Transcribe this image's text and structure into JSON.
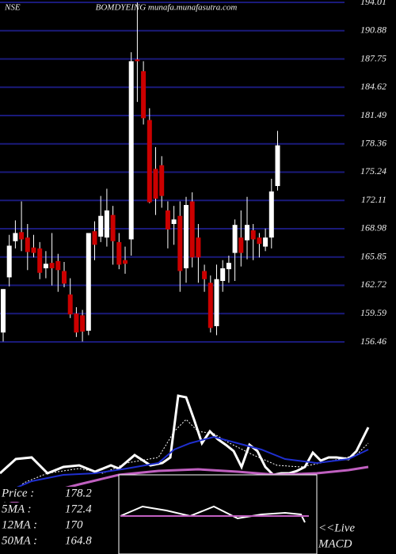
{
  "chart_data": {
    "type": "candlestick",
    "exchange": "NSE",
    "title": "BOMDYEING munafa.munafasutra.com",
    "open": [
      157.5,
      163.6,
      167.6,
      168.6,
      168.0,
      166.9,
      166.8,
      164.6,
      165.2,
      165.4,
      164.3,
      161.7,
      159.6,
      159.4,
      157.7,
      168.7,
      168.1,
      168.0,
      170.5,
      167.5,
      165.5,
      167.8,
      187.7,
      186.4,
      181.0,
      175.6,
      176.0,
      171.0,
      169.5,
      170.4,
      164.6,
      172.0,
      168.0,
      164.3,
      163.0,
      158.2,
      163.2,
      164.5,
      166.3,
      168.0,
      167.7,
      168.8,
      168.0,
      167.0,
      168.0,
      173.7
    ],
    "high": [
      162.3,
      168.3,
      169.9,
      172.0,
      169.5,
      168.3,
      167.5,
      166.5,
      168.5,
      166.2,
      165.3,
      163.5,
      160.3,
      160.0,
      168.5,
      169.8,
      172.6,
      173.4,
      171.5,
      168.5,
      167.0,
      188.5,
      194.0,
      187.5,
      182.3,
      178.0,
      177.0,
      172.0,
      171.5,
      172.0,
      172.5,
      173.0,
      169.5,
      165.0,
      163.8,
      165.0,
      165.5,
      166.0,
      170.0,
      171.0,
      172.5,
      169.5,
      168.5,
      169.0,
      174.5,
      179.8
    ],
    "low": [
      156.5,
      162.6,
      166.8,
      166.5,
      164.4,
      165.8,
      163.4,
      163.5,
      162.7,
      162.0,
      162.5,
      159.1,
      157.0,
      156.5,
      157.2,
      165.5,
      167.5,
      167.0,
      165.0,
      164.5,
      164.0,
      166.0,
      183.0,
      180.5,
      171.8,
      170.5,
      171.3,
      166.8,
      167.2,
      162.0,
      163.0,
      164.7,
      163.0,
      162.0,
      157.5,
      157.2,
      162.0,
      163.0,
      163.2,
      164.8,
      165.6,
      165.5,
      165.8,
      166.5,
      166.8,
      173.2
    ],
    "close": [
      162.3,
      167.1,
      168.5,
      167.8,
      166.4,
      166.3,
      164.1,
      165.1,
      164.6,
      164.4,
      162.9,
      159.5,
      157.5,
      157.6,
      168.5,
      167.2,
      170.4,
      171.0,
      167.6,
      165.0,
      165.1,
      187.5,
      187.5,
      181.2,
      171.9,
      172.3,
      172.6,
      168.9,
      170.0,
      164.3,
      171.6,
      165.8,
      165.8,
      163.4,
      158.0,
      163.4,
      164.6,
      165.2,
      169.4,
      166.3,
      169.4,
      167.8,
      167.3,
      168.0,
      173.1,
      178.2
    ],
    "up_color": "#ffffff",
    "down_color": "#cc0000",
    "wick_color": "#ffffff",
    "grid_color": "#1a1a7a",
    "ylim": [
      156.46,
      194.01
    ],
    "yticks": [
      194.01,
      190.88,
      187.75,
      184.62,
      181.49,
      178.36,
      175.24,
      172.11,
      168.98,
      165.85,
      162.72,
      159.59,
      156.46
    ],
    "grid": true,
    "stats": [
      {
        "label": "Price :",
        "value": 178.2
      },
      {
        "label": "5MA :",
        "value": 172.4
      },
      {
        "label": "12MA :",
        "value": 170
      },
      {
        "label": "50MA :",
        "value": 164.8
      }
    ],
    "macd_label": [
      "<<Live",
      "MACD"
    ]
  }
}
